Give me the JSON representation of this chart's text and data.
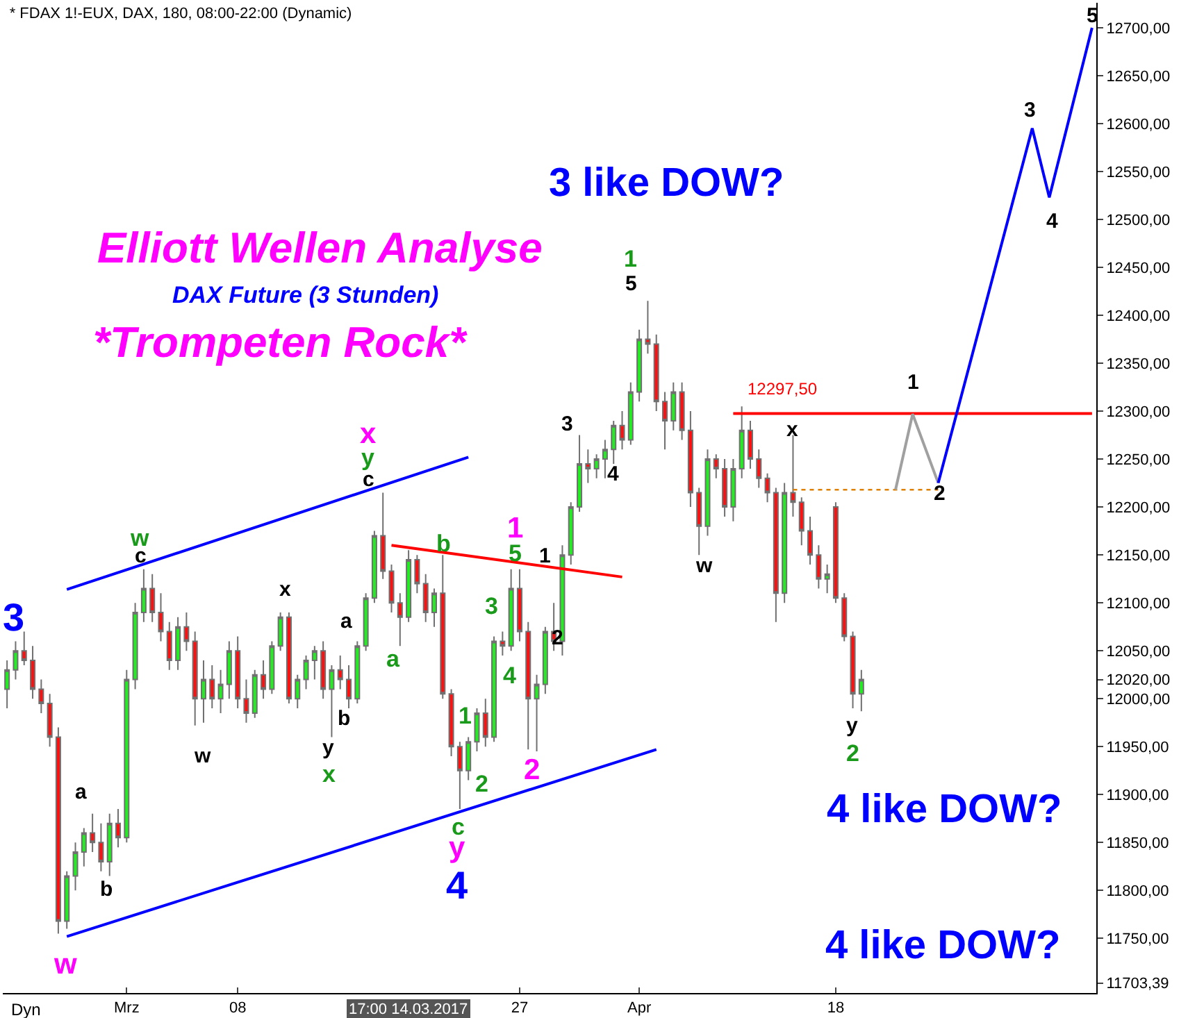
{
  "chart_data": {
    "type": "candlestick",
    "title": "* FDAX 1!-EUX, DAX, 180, 08:00-22:00 (Dynamic)",
    "categories": [
      null,
      null,
      null,
      null,
      null,
      null,
      null,
      null,
      null,
      null,
      null,
      null,
      null,
      null,
      "Mrz",
      null,
      null,
      null,
      null,
      null,
      null,
      null,
      null,
      null,
      null,
      null,
      null,
      "08",
      null,
      null,
      null,
      null,
      null,
      null,
      null,
      null,
      null,
      null,
      null,
      null,
      null,
      null,
      null,
      null,
      null,
      null,
      null,
      null,
      null,
      null,
      null,
      null,
      null,
      null,
      null,
      null,
      null,
      null,
      null,
      null,
      "27",
      null,
      null,
      null,
      null,
      null,
      null,
      null,
      null,
      null,
      null,
      null,
      null,
      null,
      "Apr",
      null,
      null,
      null,
      null,
      null,
      null,
      null,
      null,
      null,
      null,
      null,
      null,
      null,
      null,
      null,
      null,
      null,
      null,
      null,
      null,
      null,
      null,
      "18",
      null,
      null,
      null,
      null,
      null,
      null,
      null,
      null,
      null,
      null,
      null,
      null,
      null,
      null,
      null,
      null,
      null,
      null,
      null,
      null,
      null,
      null,
      null,
      null,
      null,
      null,
      null,
      null,
      null,
      null
    ],
    "ohlc": [
      [
        12010,
        12040,
        11990,
        12030
      ],
      [
        12030,
        12060,
        12020,
        12050
      ],
      [
        12050,
        12070,
        12035,
        12040
      ],
      [
        12040,
        12055,
        12000,
        12010
      ],
      [
        12010,
        12020,
        11985,
        11995
      ],
      [
        11995,
        12005,
        11950,
        11960
      ],
      [
        11960,
        11970,
        11755,
        11768
      ],
      [
        11768,
        11820,
        11760,
        11815
      ],
      [
        11815,
        11850,
        11800,
        11840
      ],
      [
        11840,
        11865,
        11825,
        11860
      ],
      [
        11860,
        11880,
        11840,
        11850
      ],
      [
        11850,
        11870,
        11820,
        11830
      ],
      [
        11830,
        11880,
        11815,
        11870
      ],
      [
        11870,
        11885,
        11845,
        11855
      ],
      [
        11855,
        12030,
        11850,
        12020
      ],
      [
        12020,
        12100,
        12010,
        12090
      ],
      [
        12090,
        12135,
        12080,
        12115
      ],
      [
        12115,
        12130,
        12080,
        12090
      ],
      [
        12090,
        12110,
        12060,
        12070
      ],
      [
        12070,
        12080,
        12030,
        12040
      ],
      [
        12040,
        12085,
        12030,
        12075
      ],
      [
        12075,
        12090,
        12050,
        12060
      ],
      [
        12060,
        12070,
        11972,
        12000
      ],
      [
        12000,
        12040,
        11975,
        12020
      ],
      [
        12020,
        12035,
        11990,
        12000
      ],
      [
        12000,
        12030,
        11985,
        12015
      ],
      [
        12015,
        12060,
        12000,
        12050
      ],
      [
        12050,
        12065,
        11990,
        12000
      ],
      [
        12000,
        12020,
        11975,
        11985
      ],
      [
        11985,
        12030,
        11980,
        12025
      ],
      [
        12025,
        12040,
        12000,
        12010
      ],
      [
        12010,
        12060,
        12005,
        12055
      ],
      [
        12055,
        12090,
        12050,
        12085
      ],
      [
        12085,
        12090,
        11995,
        12000
      ],
      [
        12000,
        12025,
        11990,
        12020
      ],
      [
        12020,
        12045,
        12010,
        12040
      ],
      [
        12040,
        12055,
        12020,
        12050
      ],
      [
        12050,
        12060,
        12000,
        12010
      ],
      [
        12010,
        12035,
        11960,
        12030
      ],
      [
        12030,
        12045,
        12010,
        12020
      ],
      [
        12020,
        12035,
        11990,
        12000
      ],
      [
        12000,
        12060,
        11995,
        12055
      ],
      [
        12055,
        12110,
        12050,
        12105
      ],
      [
        12105,
        12175,
        12100,
        12170
      ],
      [
        12170,
        12215,
        12125,
        12133
      ],
      [
        12133,
        12140,
        12090,
        12100
      ],
      [
        12100,
        12110,
        12055,
        12085
      ],
      [
        12085,
        12155,
        12080,
        12145
      ],
      [
        12145,
        12150,
        12110,
        12120
      ],
      [
        12120,
        12130,
        12080,
        12090
      ],
      [
        12090,
        12115,
        12075,
        12110
      ],
      [
        12110,
        12150,
        12000,
        12005
      ],
      [
        12005,
        12010,
        11940,
        11950
      ],
      [
        11950,
        11955,
        11885,
        11925
      ],
      [
        11925,
        11960,
        11915,
        11955
      ],
      [
        11955,
        11990,
        11945,
        11985
      ],
      [
        11985,
        12000,
        11950,
        11960
      ],
      [
        11960,
        12065,
        11955,
        12060
      ],
      [
        12060,
        12070,
        12045,
        12055
      ],
      [
        12055,
        12135,
        12050,
        12115
      ],
      [
        12115,
        12135,
        12060,
        12070
      ],
      [
        12070,
        12080,
        11947,
        12000
      ],
      [
        12000,
        12025,
        11945,
        12015
      ],
      [
        12015,
        12075,
        12005,
        12070
      ],
      [
        12070,
        12100,
        12050,
        12060
      ],
      [
        12060,
        12160,
        12045,
        12150
      ],
      [
        12150,
        12205,
        12140,
        12200
      ],
      [
        12200,
        12275,
        12195,
        12245
      ],
      [
        12245,
        12260,
        12225,
        12240
      ],
      [
        12240,
        12255,
        12230,
        12250
      ],
      [
        12250,
        12270,
        12230,
        12260
      ],
      [
        12260,
        12290,
        12245,
        12285
      ],
      [
        12285,
        12300,
        12260,
        12270
      ],
      [
        12270,
        12330,
        12265,
        12320
      ],
      [
        12320,
        12385,
        12310,
        12375
      ],
      [
        12375,
        12415,
        12360,
        12370
      ],
      [
        12370,
        12380,
        12300,
        12310
      ],
      [
        12310,
        12320,
        12260,
        12290
      ],
      [
        12290,
        12330,
        12280,
        12320
      ],
      [
        12320,
        12330,
        12270,
        12280
      ],
      [
        12280,
        12300,
        12200,
        12215
      ],
      [
        12215,
        12220,
        12150,
        12180
      ],
      [
        12180,
        12260,
        12170,
        12250
      ],
      [
        12250,
        12255,
        12230,
        12240
      ],
      [
        12240,
        12250,
        12190,
        12200
      ],
      [
        12200,
        12250,
        12185,
        12240
      ],
      [
        12240,
        12305,
        12230,
        12280
      ],
      [
        12280,
        12290,
        12240,
        12250
      ],
      [
        12250,
        12260,
        12220,
        12230
      ],
      [
        12230,
        12235,
        12205,
        12215
      ],
      [
        12215,
        12220,
        12080,
        12110
      ],
      [
        12110,
        12225,
        12100,
        12215
      ],
      [
        12215,
        12275,
        12190,
        12205
      ],
      [
        12205,
        12210,
        12160,
        12175
      ],
      [
        12175,
        12190,
        12140,
        12150
      ],
      [
        12150,
        12160,
        12115,
        12125
      ],
      [
        12125,
        12140,
        12110,
        12130
      ],
      [
        12200,
        12205,
        12100,
        12105
      ],
      [
        12105,
        12110,
        12060,
        12065
      ],
      [
        12065,
        12070,
        11990,
        12005
      ],
      [
        12005,
        12030,
        11987,
        12020
      ],
      null,
      null,
      null,
      null,
      null,
      null,
      null,
      null,
      null,
      null,
      null,
      null,
      null,
      null,
      null,
      null,
      null,
      null,
      null,
      null,
      null,
      null,
      null,
      null,
      null,
      null,
      null
    ],
    "series": [
      {
        "type": "line",
        "color": "#0000ff",
        "values": [
          null,
          null,
          null,
          null,
          null,
          null,
          null,
          12114,
          null,
          null,
          null,
          null,
          null,
          null,
          null,
          null,
          null,
          null,
          null,
          null,
          null,
          null,
          null,
          null,
          null,
          null,
          null,
          null,
          null,
          null,
          null,
          null,
          null,
          null,
          null,
          null,
          null,
          null,
          null,
          null,
          null,
          null,
          null,
          null,
          null,
          null,
          null,
          null,
          null,
          null,
          null,
          null,
          null,
          null,
          12252,
          null,
          null,
          null,
          null,
          null,
          null,
          null,
          null,
          null,
          null,
          null,
          null,
          null,
          null,
          null,
          null,
          null,
          null,
          null,
          null,
          null,
          null,
          null,
          null,
          null,
          null,
          null,
          null,
          null,
          null,
          null,
          null,
          null,
          null,
          null,
          null,
          null,
          null,
          null,
          null,
          null,
          null,
          null,
          null,
          null,
          null,
          null,
          null,
          null,
          null,
          null,
          null,
          null,
          null,
          null,
          null,
          null,
          null,
          null,
          null,
          null,
          null,
          null,
          null,
          null,
          null,
          null,
          null,
          null,
          null,
          null,
          null,
          null
        ]
      },
      {
        "type": "line",
        "color": "#0000ff",
        "values": [
          null,
          null,
          null,
          null,
          null,
          null,
          null,
          11752,
          null,
          null,
          null,
          null,
          null,
          null,
          null,
          null,
          null,
          null,
          null,
          null,
          null,
          null,
          null,
          null,
          null,
          null,
          null,
          null,
          null,
          null,
          null,
          null,
          null,
          null,
          null,
          null,
          null,
          null,
          null,
          null,
          null,
          null,
          null,
          null,
          null,
          null,
          null,
          null,
          null,
          null,
          null,
          null,
          null,
          null,
          null,
          null,
          null,
          null,
          null,
          null,
          null,
          null,
          null,
          null,
          null,
          null,
          null,
          null,
          null,
          null,
          null,
          null,
          null,
          null,
          null,
          null,
          11947,
          null,
          null,
          null,
          null,
          null,
          null,
          null,
          null,
          null,
          null,
          null,
          null,
          null,
          null,
          null,
          null,
          null,
          null,
          null,
          null,
          null,
          null,
          null,
          null,
          null,
          null,
          null,
          null,
          null,
          null,
          null,
          null,
          null,
          null,
          null,
          null,
          null,
          null,
          null,
          null,
          null,
          null,
          null,
          null,
          null,
          null,
          null,
          null,
          null,
          null,
          null
        ]
      },
      {
        "type": "line",
        "color": "#ff0000",
        "values": [
          null,
          null,
          null,
          null,
          null,
          null,
          null,
          null,
          null,
          null,
          null,
          null,
          null,
          null,
          null,
          null,
          null,
          null,
          null,
          null,
          null,
          null,
          null,
          null,
          null,
          null,
          null,
          null,
          null,
          null,
          null,
          null,
          null,
          null,
          null,
          null,
          null,
          null,
          null,
          null,
          null,
          null,
          null,
          null,
          null,
          12160,
          null,
          null,
          null,
          null,
          null,
          null,
          null,
          null,
          null,
          null,
          null,
          null,
          null,
          null,
          null,
          null,
          null,
          null,
          null,
          null,
          null,
          null,
          null,
          null,
          null,
          null,
          12127,
          null,
          null,
          null,
          null,
          null,
          null,
          null,
          null,
          null,
          null,
          null,
          null,
          null,
          null,
          null,
          null,
          null,
          null,
          null,
          null,
          null,
          null,
          null,
          null,
          null,
          null,
          null,
          null,
          null,
          null,
          null,
          null,
          null,
          null,
          null,
          null,
          null,
          null,
          null,
          null,
          null,
          null,
          null,
          null,
          null,
          null,
          null,
          null,
          null,
          null,
          null,
          null,
          null,
          null,
          null
        ]
      },
      {
        "type": "line",
        "color": "#ff0000",
        "values": [
          null,
          null,
          null,
          null,
          null,
          null,
          null,
          null,
          null,
          null,
          null,
          null,
          null,
          null,
          null,
          null,
          null,
          null,
          null,
          null,
          null,
          null,
          null,
          null,
          null,
          null,
          null,
          null,
          null,
          null,
          null,
          null,
          null,
          null,
          null,
          null,
          null,
          null,
          null,
          null,
          null,
          null,
          null,
          null,
          null,
          null,
          null,
          null,
          null,
          null,
          null,
          null,
          null,
          null,
          null,
          null,
          null,
          null,
          null,
          null,
          null,
          null,
          null,
          null,
          null,
          null,
          null,
          null,
          null,
          null,
          null,
          null,
          null,
          null,
          null,
          null,
          null,
          null,
          null,
          null,
          null,
          null,
          null,
          null,
          null,
          12297.5,
          null,
          null,
          null,
          null,
          null,
          null,
          null,
          null,
          null,
          null,
          null,
          null,
          null,
          null,
          null,
          null,
          null,
          null,
          null,
          null,
          null,
          null,
          null,
          null,
          null,
          null,
          null,
          null,
          null,
          null,
          null,
          null,
          null,
          null,
          null,
          null,
          null,
          null,
          null,
          null,
          null,
          12297.5
        ]
      },
      {
        "type": "line",
        "color": "#e08000",
        "line_style": "dotted",
        "values": [
          null,
          null,
          null,
          null,
          null,
          null,
          null,
          null,
          null,
          null,
          null,
          null,
          null,
          null,
          null,
          null,
          null,
          null,
          null,
          null,
          null,
          null,
          null,
          null,
          null,
          null,
          null,
          null,
          null,
          null,
          null,
          null,
          null,
          null,
          null,
          null,
          null,
          null,
          null,
          null,
          null,
          null,
          null,
          null,
          null,
          null,
          null,
          null,
          null,
          null,
          null,
          null,
          null,
          null,
          null,
          null,
          null,
          null,
          null,
          null,
          null,
          null,
          null,
          null,
          null,
          null,
          null,
          null,
          null,
          null,
          null,
          null,
          null,
          null,
          null,
          null,
          null,
          null,
          null,
          null,
          null,
          null,
          null,
          null,
          null,
          null,
          null,
          null,
          null,
          null,
          null,
          null,
          12218,
          null,
          null,
          null,
          null,
          null,
          null,
          null,
          null,
          null,
          null,
          null,
          null,
          null,
          null,
          null,
          null,
          12218,
          null,
          null,
          null,
          null,
          null,
          null,
          null,
          null,
          null,
          null,
          null,
          null,
          null,
          null,
          null,
          null,
          null,
          null
        ]
      },
      {
        "type": "line",
        "color": "#a0a0a0",
        "values": [
          null,
          null,
          null,
          null,
          null,
          null,
          null,
          null,
          null,
          null,
          null,
          null,
          null,
          null,
          null,
          null,
          null,
          null,
          null,
          null,
          null,
          null,
          null,
          null,
          null,
          null,
          null,
          null,
          null,
          null,
          null,
          null,
          null,
          null,
          null,
          null,
          null,
          null,
          null,
          null,
          null,
          null,
          null,
          null,
          null,
          null,
          null,
          null,
          null,
          null,
          null,
          null,
          null,
          null,
          null,
          null,
          null,
          null,
          null,
          null,
          null,
          null,
          null,
          null,
          null,
          null,
          null,
          null,
          null,
          null,
          null,
          null,
          null,
          null,
          null,
          null,
          null,
          null,
          null,
          null,
          null,
          null,
          null,
          null,
          null,
          null,
          null,
          null,
          null,
          null,
          null,
          null,
          null,
          null,
          null,
          null,
          null,
          null,
          null,
          null,
          null,
          null,
          null,
          null,
          12218,
          null,
          12297,
          null,
          null,
          12225,
          null,
          null,
          null,
          null,
          null,
          null,
          null,
          null,
          null,
          null,
          null,
          null,
          null,
          null,
          null,
          null,
          null,
          null
        ]
      },
      {
        "type": "line",
        "color": "#0000ff",
        "values": [
          null,
          null,
          null,
          null,
          null,
          null,
          null,
          null,
          null,
          null,
          null,
          null,
          null,
          null,
          null,
          null,
          null,
          null,
          null,
          null,
          null,
          null,
          null,
          null,
          null,
          null,
          null,
          null,
          null,
          null,
          null,
          null,
          null,
          null,
          null,
          null,
          null,
          null,
          null,
          null,
          null,
          null,
          null,
          null,
          null,
          null,
          null,
          null,
          null,
          null,
          null,
          null,
          null,
          null,
          null,
          null,
          null,
          null,
          null,
          null,
          null,
          null,
          null,
          null,
          null,
          null,
          null,
          null,
          null,
          null,
          null,
          null,
          null,
          null,
          null,
          null,
          null,
          null,
          null,
          null,
          null,
          null,
          null,
          null,
          null,
          null,
          null,
          null,
          null,
          null,
          null,
          null,
          null,
          null,
          null,
          null,
          null,
          null,
          null,
          null,
          null,
          null,
          null,
          null,
          null,
          null,
          null,
          null,
          null,
          12225,
          null,
          null,
          null,
          null,
          null,
          null,
          null,
          null,
          null,
          null,
          12595,
          null,
          12523,
          null,
          null,
          null,
          null,
          12700
        ]
      }
    ],
    "ylim": [
      11693,
      12726
    ],
    "yticks": [
      {
        "value": 11703.39,
        "label": "11703,39"
      },
      {
        "value": 11750,
        "label": "11750,00"
      },
      {
        "value": 11800,
        "label": "11800,00"
      },
      {
        "value": 11850,
        "label": "11850,00"
      },
      {
        "value": 11900,
        "label": "11900,00"
      },
      {
        "value": 11950,
        "label": "11950,00"
      },
      {
        "value": 12000,
        "label": "12000,00"
      },
      {
        "value": 12020,
        "label": "12020,00"
      },
      {
        "value": 12050,
        "label": "12050,00"
      },
      {
        "value": 12100,
        "label": "12100,00"
      },
      {
        "value": 12150,
        "label": "12150,00"
      },
      {
        "value": 12200,
        "label": "12200,00"
      },
      {
        "value": 12250,
        "label": "12250,00"
      },
      {
        "value": 12300,
        "label": "12300,00"
      },
      {
        "value": 12350,
        "label": "12350,00"
      },
      {
        "value": 12400,
        "label": "12400,00"
      },
      {
        "value": 12450,
        "label": "12450,00"
      },
      {
        "value": 12500,
        "label": "12500,00"
      },
      {
        "value": 12550,
        "label": "12550,00"
      },
      {
        "value": 12600,
        "label": "12600,00"
      },
      {
        "value": 12650,
        "label": "12650,00"
      },
      {
        "value": 12700,
        "label": "12700,00"
      }
    ],
    "annotations": [
      "Elliott Wellen Analyse",
      "DAX Future (3 Stunden)",
      "*Trompeten Rock*",
      "3 like DOW?",
      "4 like DOW?",
      "4 like DOW?",
      "17:00 14.03.2017",
      "Dyn",
      "12297,50",
      "3",
      "w",
      "a",
      "b",
      "w",
      "c",
      "w",
      "x",
      "y",
      "x",
      "a",
      "b",
      "a",
      "x",
      "y",
      "c",
      "b",
      "1",
      "5",
      "1",
      "3",
      "2",
      "4",
      "1",
      "2",
      "2",
      "c",
      "y",
      "4",
      "3",
      "4",
      "1",
      "5",
      "w",
      "x",
      "y",
      "2",
      "1",
      "2",
      "3",
      "4",
      "5"
    ]
  }
}
